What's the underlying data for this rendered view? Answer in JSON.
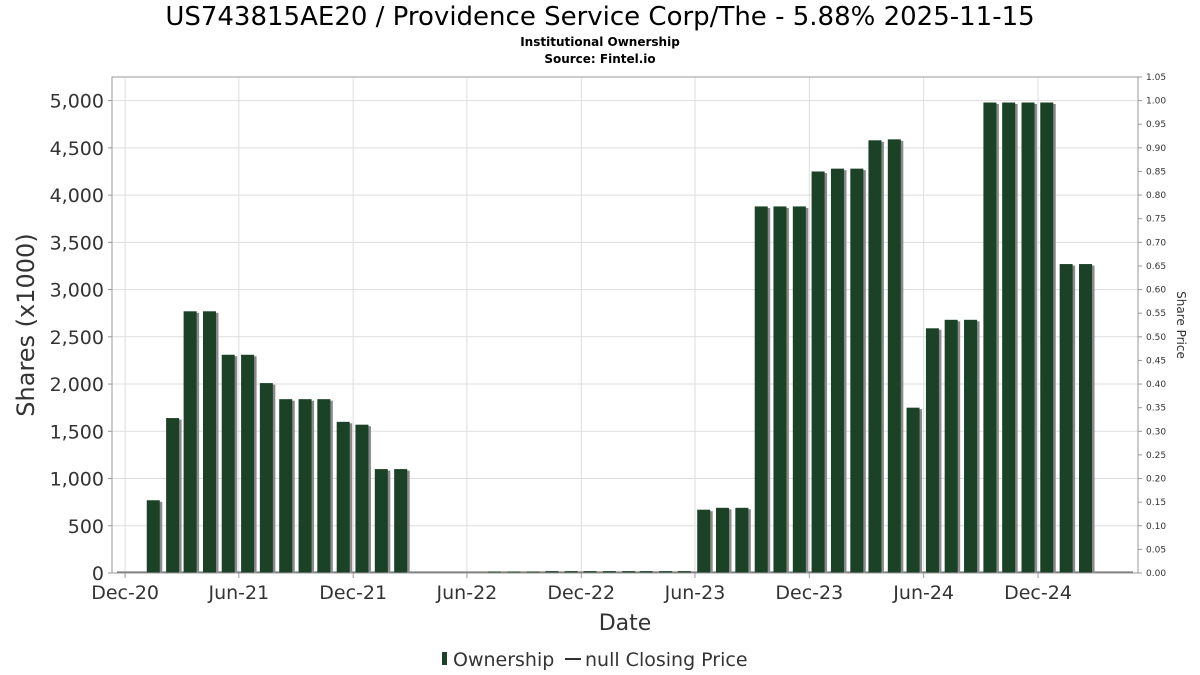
{
  "title": "US743815AE20 / Providence Service Corp/The - 5.88% 2025-11-15",
  "subtitle": "Institutional Ownership",
  "source": "Source: Fintel.io",
  "chart_data": {
    "type": "bar",
    "xlabel": "Date",
    "ylabel": "Shares (x1000)",
    "y2label": "Share Price",
    "ylim": [
      0,
      5250
    ],
    "y2lim": [
      0,
      1.05
    ],
    "yticks": [
      "0",
      "500",
      "1,000",
      "1,500",
      "2,000",
      "2,500",
      "3,000",
      "3,500",
      "4,000",
      "4,500",
      "5,000"
    ],
    "y2ticks": [
      "0.00",
      "0.05",
      "0.10",
      "0.15",
      "0.20",
      "0.25",
      "0.30",
      "0.35",
      "0.40",
      "0.45",
      "0.50",
      "0.55",
      "0.60",
      "0.65",
      "0.70",
      "0.75",
      "0.80",
      "0.85",
      "0.90",
      "0.95",
      "1.00",
      "1.05"
    ],
    "xticks": [
      "Dec-20",
      "Jun-21",
      "Dec-21",
      "Jun-22",
      "Dec-22",
      "Jun-23",
      "Dec-23",
      "Jun-24",
      "Dec-24"
    ],
    "grid": true,
    "legend_position": "bottom-center",
    "colors": {
      "bar": "#1b4126",
      "bar_shadow": "#8a8a8a",
      "grid": "#dddddd",
      "plot_border": "#999999"
    },
    "series": [
      {
        "name": "Ownership",
        "dates": [
          "2021-01-15",
          "2021-02-15",
          "2021-03-15",
          "2021-04-15",
          "2021-05-15",
          "2021-06-15",
          "2021-07-15",
          "2021-08-15",
          "2021-09-15",
          "2021-10-15",
          "2021-11-15",
          "2021-12-15",
          "2022-01-15",
          "2022-02-15",
          "2022-07-15",
          "2022-08-15",
          "2022-09-15",
          "2022-10-15",
          "2022-11-15",
          "2022-12-15",
          "2023-01-15",
          "2023-02-15",
          "2023-03-15",
          "2023-04-15",
          "2023-05-15",
          "2023-06-15",
          "2023-07-15",
          "2023-08-15",
          "2023-09-15",
          "2023-10-15",
          "2023-11-15",
          "2023-12-15",
          "2024-01-15",
          "2024-02-15",
          "2024-03-15",
          "2024-04-15",
          "2024-05-15",
          "2024-06-15",
          "2024-07-15",
          "2024-08-15",
          "2024-09-15",
          "2024-10-15",
          "2024-11-15",
          "2024-12-15",
          "2025-01-15",
          "2025-02-15"
        ],
        "values": [
          770,
          1640,
          2770,
          2770,
          2310,
          2310,
          2010,
          1840,
          1840,
          1840,
          1600,
          1570,
          1100,
          1100,
          10,
          10,
          10,
          20,
          20,
          20,
          20,
          20,
          20,
          20,
          20,
          670,
          690,
          690,
          3880,
          3880,
          3880,
          4250,
          4280,
          4280,
          4580,
          4590,
          1750,
          2590,
          2680,
          2680,
          4980,
          4980,
          4980,
          4980,
          3270,
          3270
        ]
      },
      {
        "name": "null Closing Price",
        "dates": [],
        "values": []
      }
    ]
  }
}
